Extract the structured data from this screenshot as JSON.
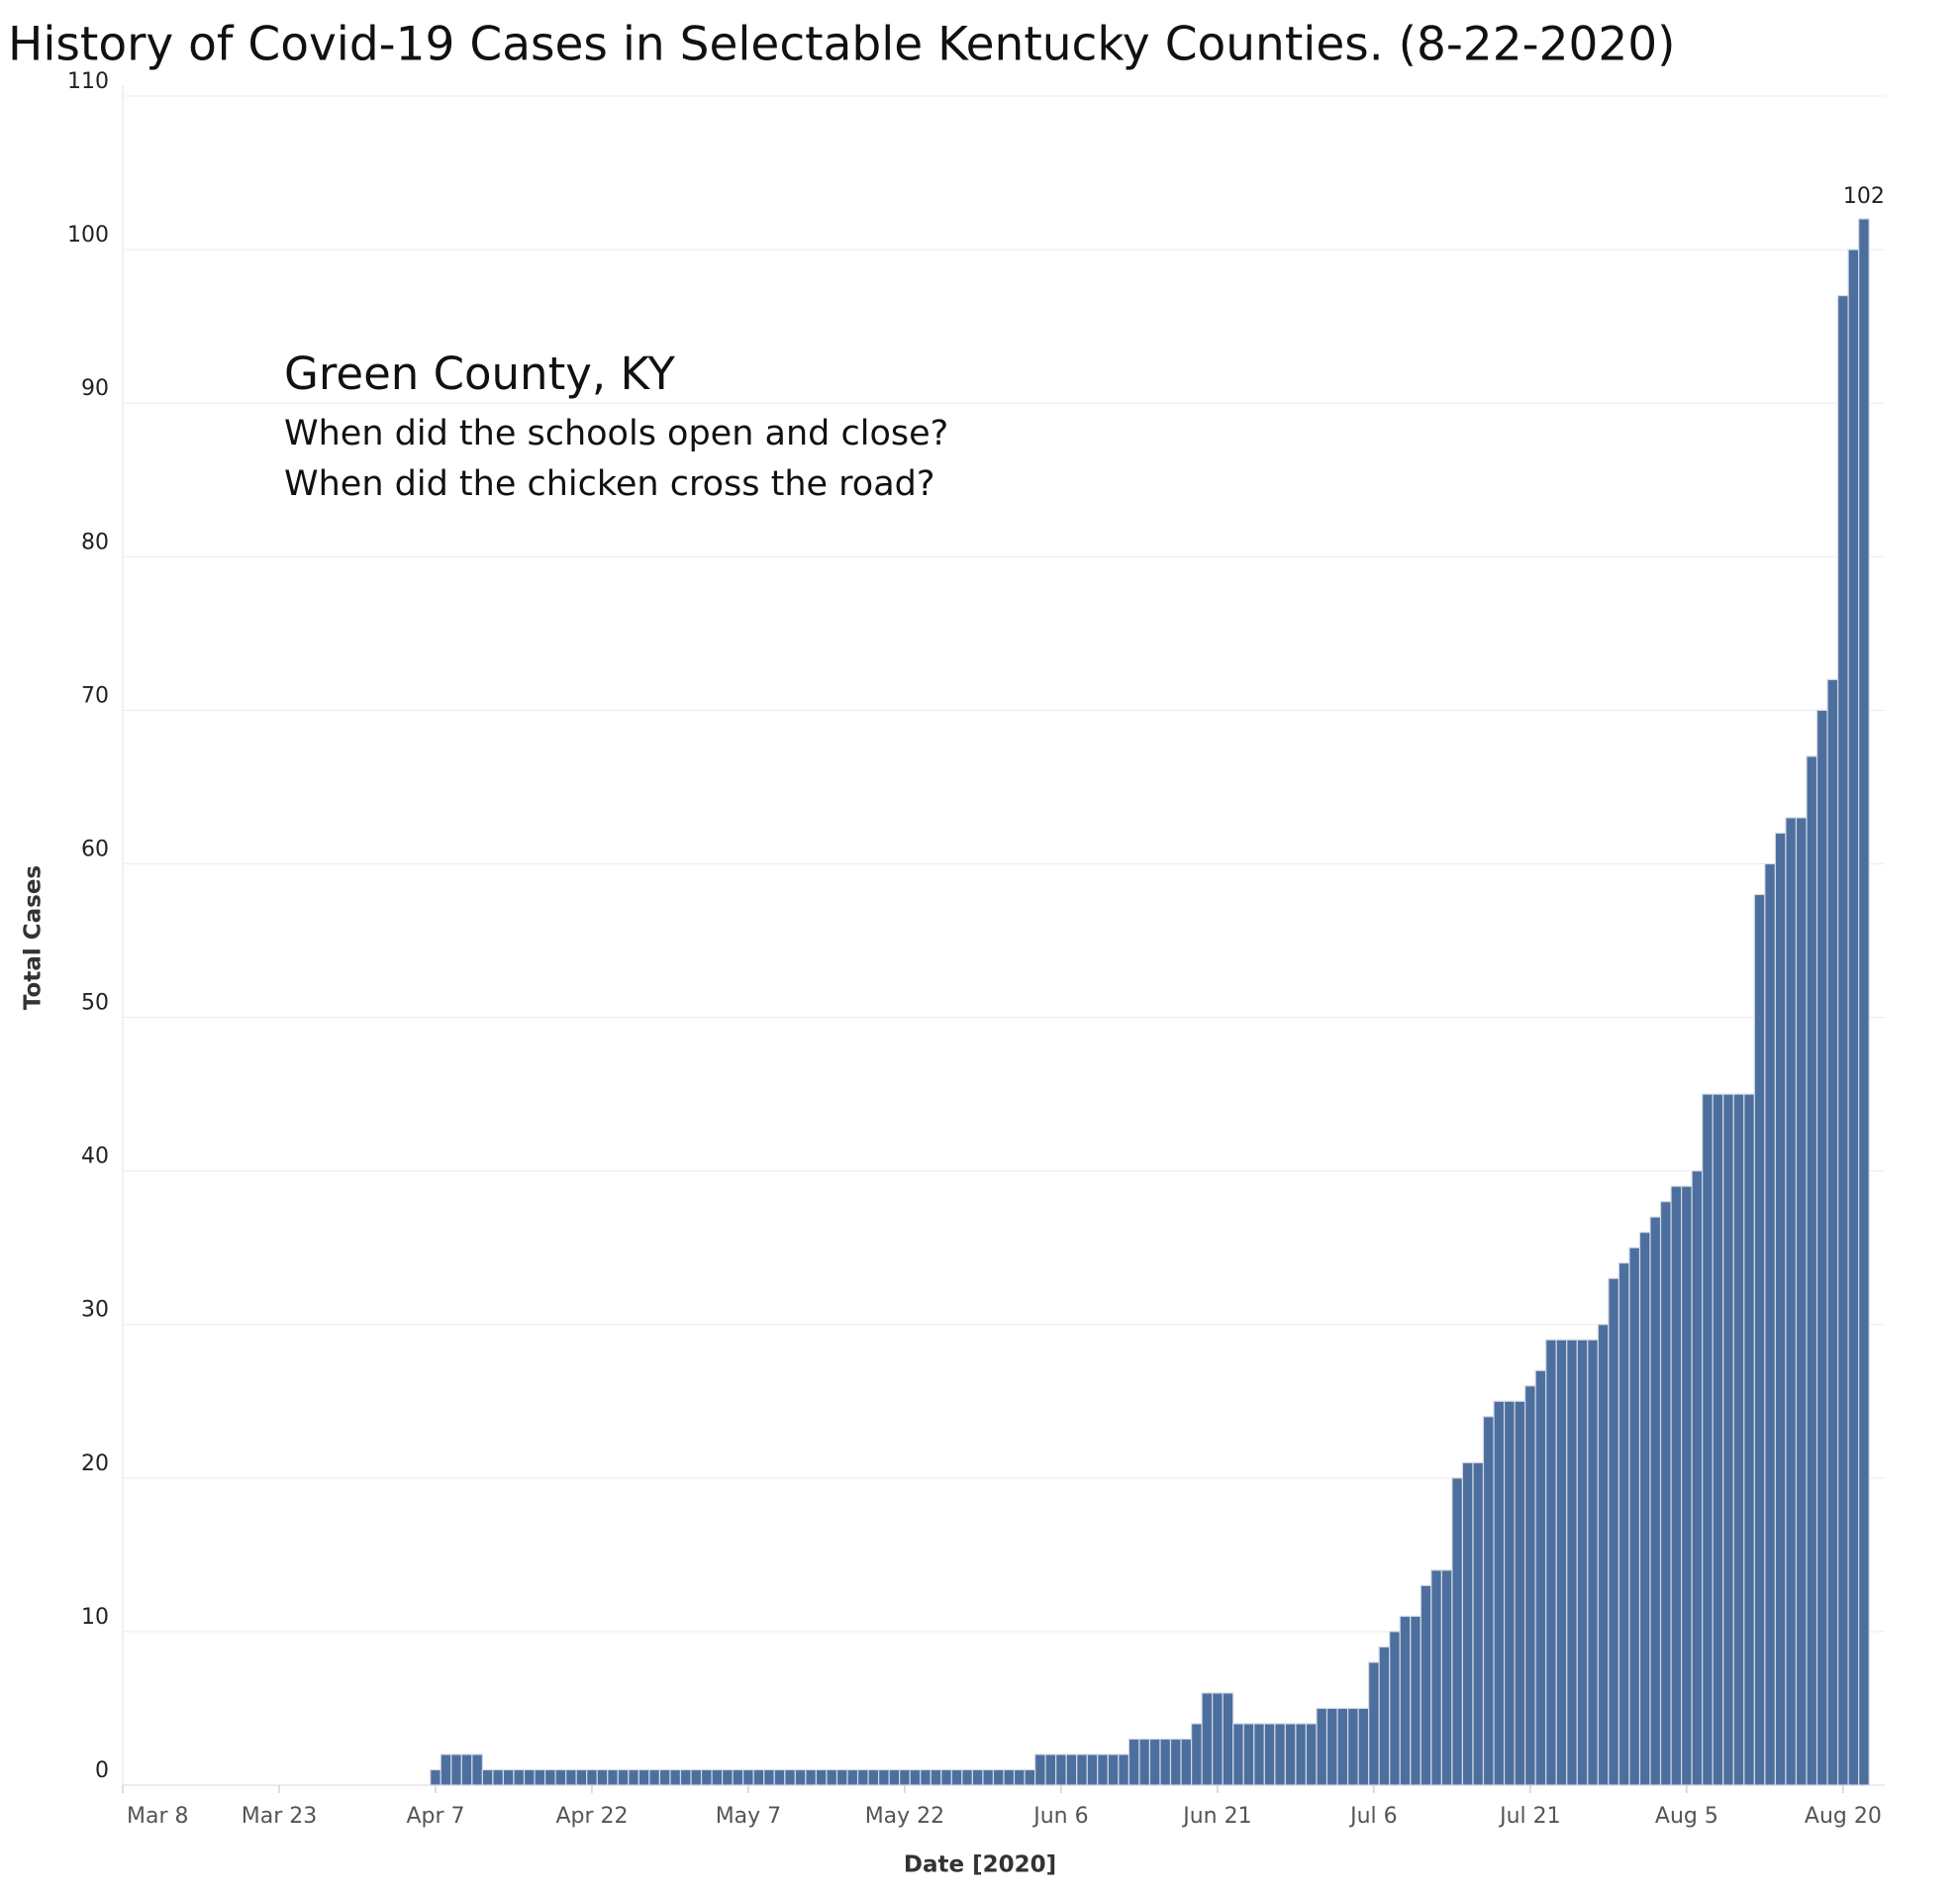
{
  "chart_data": {
    "type": "bar",
    "title": "History of Covid-19 Cases in Selectable Kentucky Counties. (8-22-2020)",
    "annotations": [
      "Green County, KY",
      "When did the schools open and close?",
      "When did the chicken cross the road?"
    ],
    "x_label": "Date [2020]",
    "y_label": "Total Cases",
    "color": "#4c6f9e",
    "grid": true,
    "x": [
      "2020-04-07",
      "2020-04-08",
      "2020-04-09",
      "2020-04-10",
      "2020-04-11",
      "2020-04-12",
      "2020-04-13",
      "2020-04-14",
      "2020-04-15",
      "2020-04-16",
      "2020-04-17",
      "2020-04-18",
      "2020-04-19",
      "2020-04-20",
      "2020-04-21",
      "2020-04-22",
      "2020-04-23",
      "2020-04-24",
      "2020-04-25",
      "2020-04-26",
      "2020-04-27",
      "2020-04-28",
      "2020-04-29",
      "2020-04-30",
      "2020-05-01",
      "2020-05-02",
      "2020-05-03",
      "2020-05-04",
      "2020-05-05",
      "2020-05-06",
      "2020-05-07",
      "2020-05-08",
      "2020-05-09",
      "2020-05-10",
      "2020-05-11",
      "2020-05-12",
      "2020-05-13",
      "2020-05-14",
      "2020-05-15",
      "2020-05-16",
      "2020-05-17",
      "2020-05-18",
      "2020-05-19",
      "2020-05-20",
      "2020-05-21",
      "2020-05-22",
      "2020-05-23",
      "2020-05-24",
      "2020-05-25",
      "2020-05-26",
      "2020-05-27",
      "2020-05-28",
      "2020-05-29",
      "2020-05-30",
      "2020-05-31",
      "2020-06-01",
      "2020-06-02",
      "2020-06-03",
      "2020-06-04",
      "2020-06-05",
      "2020-06-06",
      "2020-06-07",
      "2020-06-08",
      "2020-06-09",
      "2020-06-10",
      "2020-06-11",
      "2020-06-12",
      "2020-06-13",
      "2020-06-14",
      "2020-06-15",
      "2020-06-16",
      "2020-06-17",
      "2020-06-18",
      "2020-06-19",
      "2020-06-20",
      "2020-06-21",
      "2020-06-22",
      "2020-06-23",
      "2020-06-24",
      "2020-06-25",
      "2020-06-26",
      "2020-06-27",
      "2020-06-28",
      "2020-06-29",
      "2020-06-30",
      "2020-07-01",
      "2020-07-02",
      "2020-07-03",
      "2020-07-04",
      "2020-07-05",
      "2020-07-06",
      "2020-07-07",
      "2020-07-08",
      "2020-07-09",
      "2020-07-10",
      "2020-07-11",
      "2020-07-12",
      "2020-07-13",
      "2020-07-14",
      "2020-07-15",
      "2020-07-16",
      "2020-07-17",
      "2020-07-18",
      "2020-07-19",
      "2020-07-20",
      "2020-07-21",
      "2020-07-22",
      "2020-07-23",
      "2020-07-24",
      "2020-07-25",
      "2020-07-26",
      "2020-07-27",
      "2020-07-28",
      "2020-07-29",
      "2020-07-30",
      "2020-07-31",
      "2020-08-01",
      "2020-08-02",
      "2020-08-03",
      "2020-08-04",
      "2020-08-05",
      "2020-08-06",
      "2020-08-07",
      "2020-08-08",
      "2020-08-09",
      "2020-08-10",
      "2020-08-11",
      "2020-08-12",
      "2020-08-13",
      "2020-08-14",
      "2020-08-15",
      "2020-08-16",
      "2020-08-17",
      "2020-08-18",
      "2020-08-19",
      "2020-08-20",
      "2020-08-21",
      "2020-08-22"
    ],
    "values": [
      1,
      2,
      2,
      2,
      2,
      1,
      1,
      1,
      1,
      1,
      1,
      1,
      1,
      1,
      1,
      1,
      1,
      1,
      1,
      1,
      1,
      1,
      1,
      1,
      1,
      1,
      1,
      1,
      1,
      1,
      1,
      1,
      1,
      1,
      1,
      1,
      1,
      1,
      1,
      1,
      1,
      1,
      1,
      1,
      1,
      1,
      1,
      1,
      1,
      1,
      1,
      1,
      1,
      1,
      1,
      1,
      1,
      1,
      2,
      2,
      2,
      2,
      2,
      2,
      2,
      2,
      2,
      3,
      3,
      3,
      3,
      3,
      3,
      4,
      6,
      6,
      6,
      4,
      4,
      4,
      4,
      4,
      4,
      4,
      4,
      5,
      5,
      5,
      5,
      5,
      8,
      9,
      10,
      11,
      11,
      13,
      14,
      14,
      20,
      21,
      21,
      24,
      25,
      25,
      25,
      26,
      27,
      29,
      29,
      29,
      29,
      29,
      30,
      33,
      34,
      35,
      36,
      37,
      38,
      39,
      39,
      40,
      45,
      45,
      45,
      45,
      45,
      58,
      60,
      62,
      63,
      63,
      67,
      70,
      72,
      97,
      100,
      102
    ],
    "xlim": [
      "2020-03-08",
      "2020-08-24"
    ],
    "xticks": [
      {
        "value": "2020-03-08",
        "label": "Mar 8"
      },
      {
        "value": "2020-03-23",
        "label": "Mar 23"
      },
      {
        "value": "2020-04-07",
        "label": "Apr 7"
      },
      {
        "value": "2020-04-22",
        "label": "Apr 22"
      },
      {
        "value": "2020-05-07",
        "label": "May 7"
      },
      {
        "value": "2020-05-22",
        "label": "May 22"
      },
      {
        "value": "2020-06-06",
        "label": "Jun 6"
      },
      {
        "value": "2020-06-21",
        "label": "Jun 21"
      },
      {
        "value": "2020-07-06",
        "label": "Jul 6"
      },
      {
        "value": "2020-07-21",
        "label": "Jul 21"
      },
      {
        "value": "2020-08-05",
        "label": "Aug 5"
      },
      {
        "value": "2020-08-20",
        "label": "Aug 20"
      }
    ],
    "ylim": [
      0,
      110
    ],
    "yticks": [
      0,
      10,
      20,
      30,
      40,
      50,
      60,
      70,
      80,
      90,
      100,
      110
    ],
    "labeled_points": [
      137
    ]
  }
}
